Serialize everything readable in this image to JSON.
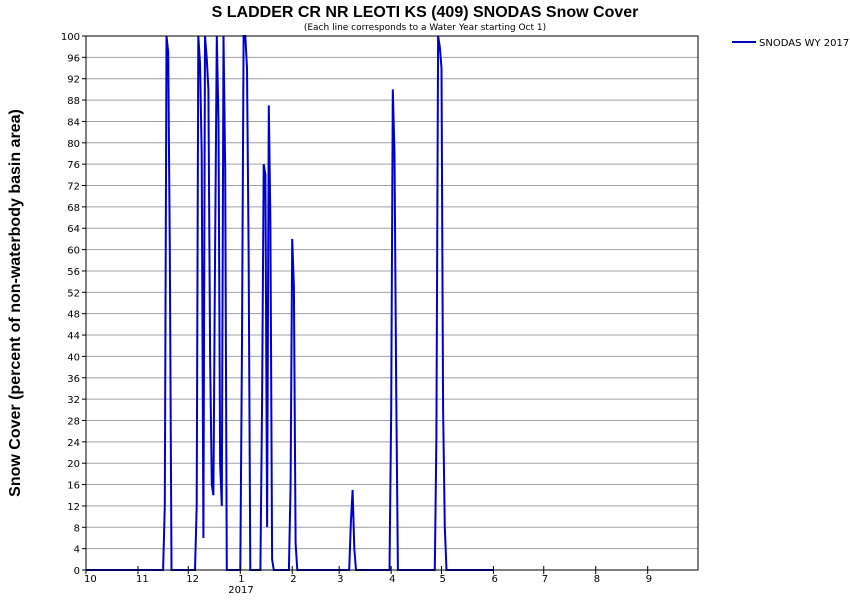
{
  "chart_data": {
    "type": "line",
    "title": "S LADDER CR NR LEOTI KS (409) SNODAS Snow Cover",
    "subtitle": "(Each line corresponds to a Water Year starting Oct 1)",
    "ylabel": "Snow Cover (percent of non-waterbody basin area)",
    "xlabel": "",
    "x_axis": {
      "type": "date",
      "range": [
        "2016-10-01",
        "2017-10-01"
      ],
      "tick_labels": [
        "10",
        "11",
        "12",
        "1",
        "2",
        "3",
        "4",
        "5",
        "6",
        "7",
        "8",
        "9"
      ],
      "year_label": "2017"
    },
    "ylim": [
      0,
      100
    ],
    "y_ticks": [
      0,
      4,
      8,
      12,
      16,
      20,
      24,
      28,
      32,
      36,
      40,
      44,
      48,
      52,
      56,
      60,
      64,
      68,
      72,
      76,
      80,
      84,
      88,
      92,
      96,
      100
    ],
    "grid": true,
    "legend_position": "top-right",
    "colors": {
      "series": "#0000cc",
      "grid": "#a0a0a0",
      "axis": "#000000"
    },
    "series": [
      {
        "name": "SNODAS WY 2017",
        "points": [
          [
            "2016-10-01",
            0
          ],
          [
            "2016-11-16",
            0
          ],
          [
            "2016-11-17",
            12
          ],
          [
            "2016-11-18",
            100
          ],
          [
            "2016-11-19",
            97
          ],
          [
            "2016-11-20",
            60
          ],
          [
            "2016-11-21",
            0
          ],
          [
            "2016-12-05",
            0
          ],
          [
            "2016-12-06",
            12
          ],
          [
            "2016-12-07",
            100
          ],
          [
            "2016-12-08",
            95
          ],
          [
            "2016-12-09",
            78
          ],
          [
            "2016-12-10",
            6
          ],
          [
            "2016-12-11",
            100
          ],
          [
            "2016-12-12",
            96
          ],
          [
            "2016-12-13",
            90
          ],
          [
            "2016-12-14",
            40
          ],
          [
            "2016-12-15",
            16
          ],
          [
            "2016-12-16",
            14
          ],
          [
            "2016-12-17",
            60
          ],
          [
            "2016-12-18",
            100
          ],
          [
            "2016-12-19",
            84
          ],
          [
            "2016-12-20",
            20
          ],
          [
            "2016-12-21",
            12
          ],
          [
            "2016-12-22",
            100
          ],
          [
            "2016-12-23",
            75
          ],
          [
            "2016-12-24",
            0
          ],
          [
            "2017-01-01",
            0
          ],
          [
            "2017-01-02",
            40
          ],
          [
            "2017-01-03",
            100
          ],
          [
            "2017-01-04",
            100
          ],
          [
            "2017-01-05",
            94
          ],
          [
            "2017-01-06",
            60
          ],
          [
            "2017-01-07",
            0
          ],
          [
            "2017-01-13",
            0
          ],
          [
            "2017-01-14",
            32
          ],
          [
            "2017-01-15",
            76
          ],
          [
            "2017-01-16",
            74
          ],
          [
            "2017-01-17",
            8
          ],
          [
            "2017-01-18",
            87
          ],
          [
            "2017-01-19",
            65
          ],
          [
            "2017-01-20",
            2
          ],
          [
            "2017-01-21",
            0
          ],
          [
            "2017-01-30",
            0
          ],
          [
            "2017-01-31",
            16
          ],
          [
            "2017-02-01",
            62
          ],
          [
            "2017-02-02",
            53
          ],
          [
            "2017-02-03",
            5
          ],
          [
            "2017-02-04",
            0
          ],
          [
            "2017-03-07",
            0
          ],
          [
            "2017-03-08",
            9
          ],
          [
            "2017-03-09",
            15
          ],
          [
            "2017-03-10",
            4
          ],
          [
            "2017-03-11",
            0
          ],
          [
            "2017-03-31",
            0
          ],
          [
            "2017-04-01",
            30
          ],
          [
            "2017-04-02",
            90
          ],
          [
            "2017-04-03",
            78
          ],
          [
            "2017-04-04",
            34
          ],
          [
            "2017-04-05",
            0
          ],
          [
            "2017-04-27",
            0
          ],
          [
            "2017-04-28",
            25
          ],
          [
            "2017-04-29",
            100
          ],
          [
            "2017-04-30",
            98
          ],
          [
            "2017-05-01",
            94
          ],
          [
            "2017-05-02",
            30
          ],
          [
            "2017-05-03",
            8
          ],
          [
            "2017-05-04",
            0
          ],
          [
            "2017-06-01",
            0
          ]
        ]
      }
    ]
  }
}
